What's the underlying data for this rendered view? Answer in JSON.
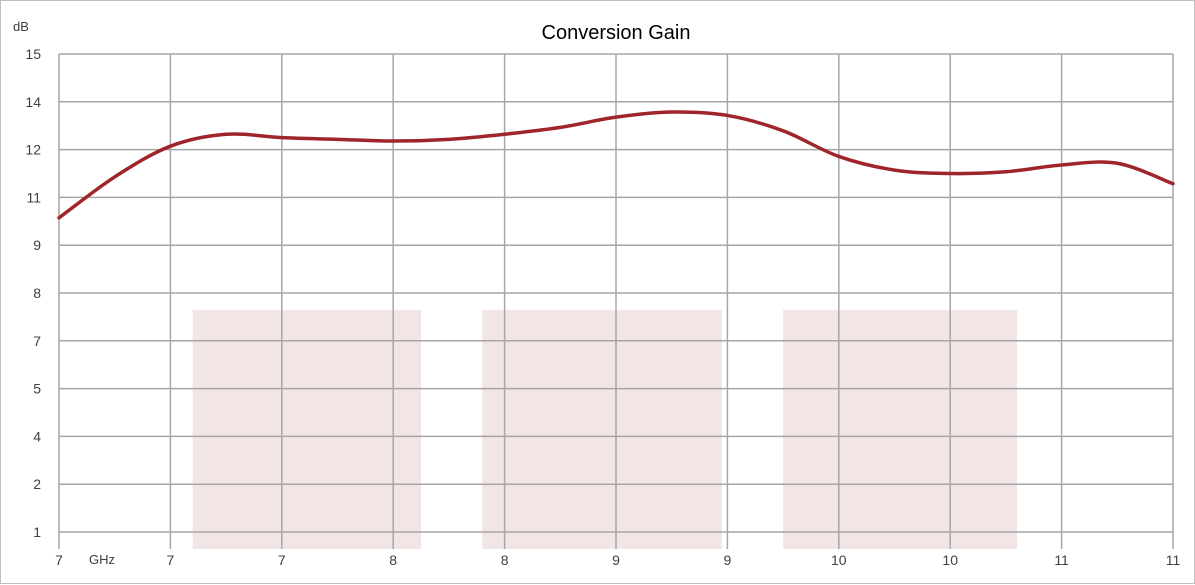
{
  "chart_data": {
    "type": "line",
    "title": "Conversion Gain",
    "ylabel": "dB",
    "xlabel": "GHz",
    "x_tick_labels": [
      "7",
      "7",
      "7",
      "8",
      "8",
      "9",
      "9",
      "10",
      "10",
      "11",
      "11"
    ],
    "y_tick_labels": [
      "1",
      "2",
      "4",
      "5",
      "7",
      "8",
      "9",
      "11",
      "12",
      "14",
      "15"
    ],
    "ylim": [
      1,
      15
    ],
    "grid": true,
    "series": [
      {
        "x": [
          0,
          0.5,
          1,
          1.5,
          2,
          2.5,
          3,
          3.5,
          4,
          4.5,
          5,
          5.5,
          6,
          6.5,
          7,
          7.5,
          8,
          8.5,
          9,
          9.5,
          10
        ],
        "y": [
          10.2,
          11.4,
          12.3,
          12.65,
          12.55,
          12.5,
          12.45,
          12.5,
          12.65,
          12.85,
          13.15,
          13.3,
          13.2,
          12.75,
          12.0,
          11.6,
          11.5,
          11.55,
          11.75,
          11.8,
          11.2
        ],
        "color": "#a0252b"
      }
    ],
    "shaded_ranges": [
      {
        "x_start": 1.2,
        "x_end": 3.25,
        "y_top": 7.5
      },
      {
        "x_start": 3.8,
        "x_end": 5.95,
        "y_top": 7.5
      },
      {
        "x_start": 6.5,
        "x_end": 8.6,
        "y_top": 7.5
      }
    ],
    "shade_color": "#f2e5e5",
    "grid_color": "#a6a6a6"
  }
}
